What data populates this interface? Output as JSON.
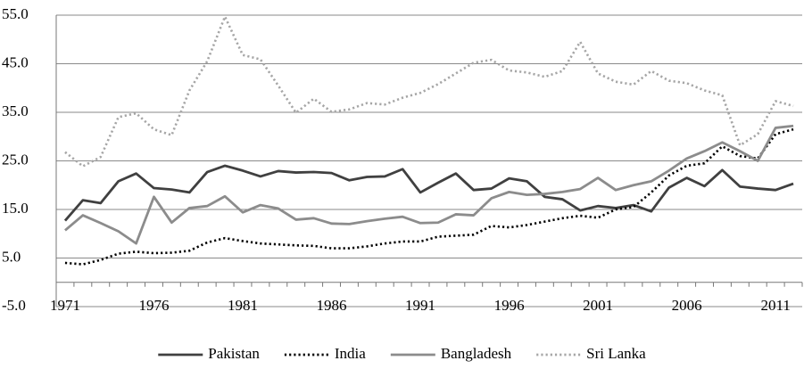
{
  "chart_data": {
    "type": "line",
    "categories": [
      "1971",
      null,
      null,
      null,
      null,
      "1976",
      null,
      null,
      null,
      null,
      "1981",
      null,
      null,
      null,
      null,
      "1986",
      null,
      null,
      null,
      null,
      "1991",
      null,
      null,
      null,
      null,
      "1996",
      null,
      null,
      null,
      null,
      "2001",
      null,
      null,
      null,
      null,
      "2006",
      null,
      null,
      null,
      null,
      "2011",
      null
    ],
    "series": [
      {
        "name": "Pakistan",
        "color": "#404040",
        "dash": "solid",
        "values": [
          12.7,
          16.9,
          16.3,
          20.8,
          22.4,
          19.4,
          19.1,
          18.5,
          22.7,
          24.0,
          23.0,
          21.8,
          22.9,
          22.6,
          22.7,
          22.5,
          21.0,
          21.7,
          21.8,
          23.3,
          18.5,
          20.5,
          22.4,
          19.0,
          19.3,
          21.4,
          20.8,
          17.6,
          17.1,
          14.8,
          15.7,
          15.3,
          15.9,
          14.6,
          19.5,
          21.5,
          19.8,
          23.1,
          19.7,
          19.3,
          19.0,
          20.3
        ]
      },
      {
        "name": "India",
        "color": "#000000",
        "dash": "dotted",
        "values": [
          4.0,
          3.7,
          4.6,
          5.9,
          6.3,
          6.0,
          6.1,
          6.5,
          8.2,
          9.1,
          8.5,
          8.0,
          7.8,
          7.6,
          7.5,
          7.0,
          7.0,
          7.4,
          8.0,
          8.4,
          8.4,
          9.4,
          9.6,
          9.8,
          11.6,
          11.3,
          11.8,
          12.5,
          13.2,
          13.7,
          13.3,
          15.0,
          15.5,
          18.5,
          22.0,
          24.0,
          24.5,
          28.0,
          26.0,
          25.5,
          30.5,
          31.5
        ]
      },
      {
        "name": "Bangladesh",
        "color": "#8c8c8c",
        "dash": "solid",
        "values": [
          10.7,
          13.8,
          12.2,
          10.5,
          8.0,
          17.6,
          12.3,
          15.3,
          15.7,
          17.7,
          14.4,
          15.9,
          15.2,
          12.9,
          13.2,
          12.1,
          12.0,
          12.6,
          13.1,
          13.5,
          12.2,
          12.3,
          14.0,
          13.8,
          17.3,
          18.6,
          18.0,
          18.2,
          18.6,
          19.2,
          21.5,
          19.0,
          20.0,
          20.8,
          23.0,
          25.5,
          27.0,
          28.8,
          27.0,
          25.0,
          31.8,
          32.2
        ]
      },
      {
        "name": "Sri Lanka",
        "color": "#a6a6a6",
        "dash": "dotted",
        "values": [
          26.8,
          23.9,
          25.8,
          34.0,
          34.8,
          31.5,
          30.3,
          39.5,
          45.5,
          54.7,
          46.8,
          45.9,
          40.5,
          34.9,
          37.8,
          35.1,
          35.6,
          36.9,
          36.6,
          38.0,
          39.0,
          40.8,
          43.0,
          45.2,
          45.8,
          43.6,
          43.2,
          42.3,
          43.5,
          49.5,
          43.0,
          41.3,
          40.7,
          43.5,
          41.5,
          41.0,
          39.5,
          38.5,
          28.2,
          30.5,
          37.3,
          36.3
        ]
      }
    ],
    "ylim": [
      -5,
      55
    ],
    "yticks": [
      {
        "value": -5,
        "label": "-5.0"
      },
      {
        "value": 5,
        "label": "5.0"
      },
      {
        "value": 15,
        "label": "15.0"
      },
      {
        "value": 25,
        "label": "25.0"
      },
      {
        "value": 35,
        "label": "35.0"
      },
      {
        "value": 45,
        "label": "45.0"
      },
      {
        "value": 55,
        "label": "55.0"
      }
    ],
    "grid": true,
    "legend": "bottom"
  }
}
